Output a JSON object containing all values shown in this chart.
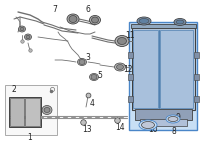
{
  "bg_color": "#ffffff",
  "highlight_color": "#4a86c8",
  "highlight_fill": "#c8dff5",
  "line_color": "#707070",
  "part_color": "#a0a0a0",
  "dark_color": "#404040",
  "font_size": 5.0
}
